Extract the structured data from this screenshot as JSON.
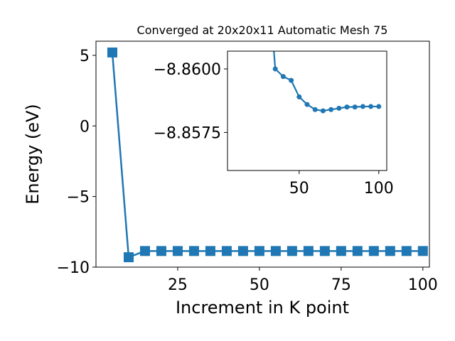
{
  "chart_data": [
    {
      "type": "line",
      "title": "Converged at 20x20x11 Automatic Mesh 75",
      "xlabel": "Increment in K point",
      "ylabel": "Energy (eV)",
      "xlim": [
        0,
        102
      ],
      "ylim": [
        -10,
        6
      ],
      "xticks": [
        25,
        50,
        75,
        100
      ],
      "yticks": [
        5,
        0,
        -5,
        -10
      ],
      "xtick_labels": [
        "25",
        "50",
        "75",
        "100"
      ],
      "ytick_labels": [
        "5",
        "0",
        "−5",
        "−10"
      ],
      "grid": false,
      "marker": "square",
      "color": "#1f77b4",
      "series": [
        {
          "x": [
            5,
            10,
            15,
            20,
            25,
            30,
            35,
            40,
            45,
            50,
            55,
            60,
            65,
            70,
            75,
            80,
            85,
            90,
            95,
            100
          ],
          "y": [
            5.2,
            -9.3,
            -8.86,
            -8.86,
            -8.86,
            -8.86,
            -8.86,
            -8.86,
            -8.86,
            -8.86,
            -8.86,
            -8.86,
            -8.86,
            -8.86,
            -8.86,
            -8.86,
            -8.86,
            -8.86,
            -8.86,
            -8.86
          ]
        }
      ]
    },
    {
      "type": "line",
      "title": "",
      "xlabel": "",
      "ylabel": "",
      "xlim": [
        5,
        105
      ],
      "ylim": [
        -8.856,
        -8.8607
      ],
      "xticks": [
        50,
        100
      ],
      "yticks": [
        -8.86,
        -8.8575
      ],
      "xtick_labels": [
        "50",
        "100"
      ],
      "ytick_labels": [
        "−8.8600",
        "−8.8575"
      ],
      "grid": false,
      "marker": "circle",
      "color": "#1f77b4",
      "series": [
        {
          "x": [
            30,
            35,
            40,
            45,
            50,
            55,
            60,
            65,
            70,
            75,
            80,
            85,
            90,
            95,
            100
          ],
          "y": [
            -8.864,
            -8.86,
            -8.8597,
            -8.85955,
            -8.8589,
            -8.8586,
            -8.8584,
            -8.85835,
            -8.8584,
            -8.85845,
            -8.8585,
            -8.8585,
            -8.85852,
            -8.85852,
            -8.85852
          ]
        }
      ]
    }
  ]
}
